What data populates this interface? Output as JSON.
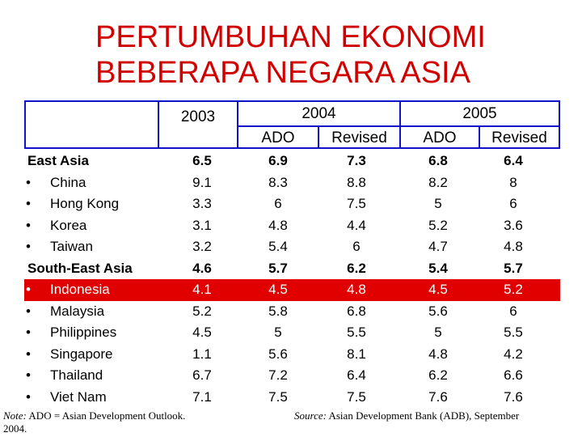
{
  "title_line1": "PERTUMBUHAN EKONOMI",
  "title_line2": "BEBERAPA NEGARA ASIA",
  "header": {
    "y2003": "2003",
    "y2004": "2004",
    "y2005": "2005",
    "ado_2004": "ADO",
    "revised_2004": "Revised",
    "ado_2005": "ADO",
    "revised_2005": "Revised"
  },
  "colors": {
    "title": "#d10000",
    "header_blue": "#1212cc",
    "highlight_red": "#e00000"
  },
  "rows": [
    {
      "label": "East Asia",
      "group": true,
      "v": [
        "6.5",
        "6.9",
        "7.3",
        "6.8",
        "6.4"
      ]
    },
    {
      "label": "China",
      "bullet": "•",
      "v": [
        "9.1",
        "8.3",
        "8.8",
        "8.2",
        "8"
      ]
    },
    {
      "label": "Hong Kong",
      "bullet": "•",
      "v": [
        "3.3",
        "6",
        "7.5",
        "5",
        "6"
      ]
    },
    {
      "label": "Korea",
      "bullet": "•",
      "v": [
        "3.1",
        "4.8",
        "4.4",
        "5.2",
        "3.6"
      ]
    },
    {
      "label": "Taiwan",
      "bullet": "•",
      "v": [
        "3.2",
        "5.4",
        "6",
        "4.7",
        "4.8"
      ]
    },
    {
      "label": "South-East Asia",
      "group": true,
      "v": [
        "4.6",
        "5.7",
        "6.2",
        "5.4",
        "5.7"
      ]
    },
    {
      "label": "Indonesia",
      "bullet": "•",
      "highlight": true,
      "v": [
        "4.1",
        "4.5",
        "4.8",
        "4.5",
        "5.2"
      ]
    },
    {
      "label": "Malaysia",
      "bullet": "•",
      "v": [
        "5.2",
        "5.8",
        "6.8",
        "5.6",
        "6"
      ]
    },
    {
      "label": "Philippines",
      "bullet": "•",
      "v": [
        "4.5",
        "5",
        "5.5",
        "5",
        "5.5"
      ]
    },
    {
      "label": "Singapore",
      "bullet": "•",
      "v": [
        "1.1",
        "5.6",
        "8.1",
        "4.8",
        "4.2"
      ]
    },
    {
      "label": "Thailand",
      "bullet": "•",
      "v": [
        "6.7",
        "7.2",
        "6.4",
        "6.2",
        "6.6"
      ]
    },
    {
      "label": "Viet Nam",
      "bullet": "•",
      "v": [
        "7.1",
        "7.5",
        "7.5",
        "7.6",
        "7.6"
      ]
    }
  ],
  "note": {
    "prefix": "Note:",
    "text": " ADO = Asian Development Outlook.",
    "line2": "2004."
  },
  "source": {
    "prefix": "Source:",
    "text": " Asian Development Bank (ADB), September"
  }
}
